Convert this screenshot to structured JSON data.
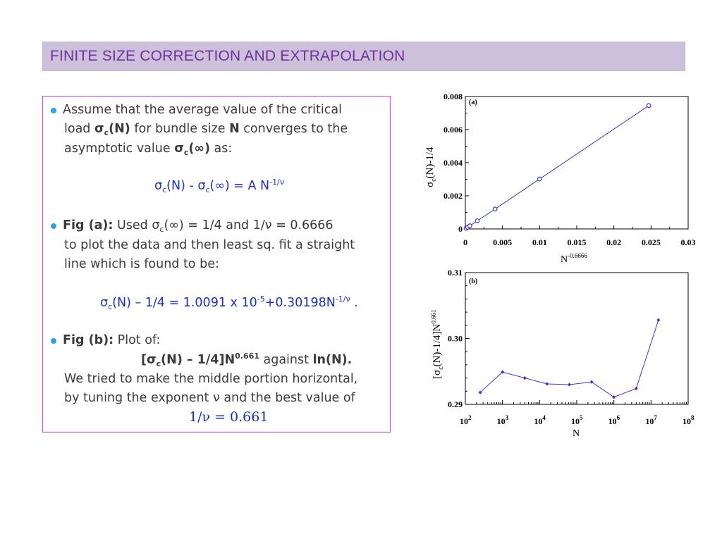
{
  "header": {
    "title": "FINITE  SIZE  CORRECTION  AND  EXTRAPOLATION"
  },
  "body": {
    "p1": {
      "line1": "Assume that the average value of the critical",
      "line2_a": "load ",
      "sigma": "σ",
      "sub_c": "c",
      "line2_b": "(N)",
      "line2_c": " for bundle size ",
      "line2_N": "N",
      "line2_d": " converges to the",
      "line3_a": "asymptotic value ",
      "line3_b": "(∞)",
      "line3_c": " as:"
    },
    "eq1": {
      "sigma": "σ",
      "c": "c",
      "a": "(N) - ",
      "b": "(∞) = A N",
      "exp": "-1/ν"
    },
    "p2": {
      "label": "Fig (a):",
      "a": " Used σ",
      "c": "c",
      "b": "(∞) = 1/4 and 1/ν = 0.6666",
      "line2": "to plot the data and then least sq. fit a straight",
      "line3": "line which is found to be:"
    },
    "eq2": {
      "sigma": "σ",
      "c": "c",
      "a": "(N) – 1/4 = 1.0091 x 10",
      "exp1": "-5",
      "b": "+0.30198N",
      "exp2": "-1/ν",
      "end": " ."
    },
    "p3": {
      "label": "Fig (b):",
      "a": " Plot of:",
      "f_open": "[σ",
      "f_c": "c",
      "f_mid": "(N) – 1/4]N",
      "f_exp": "0.661",
      "f_against": " against ",
      "f_ln": "ln(N).",
      "line3": "We tried to make the middle portion horizontal,",
      "line4": "by tuning the exponent ν and the best value of",
      "value": "1/ν = 0.661"
    }
  },
  "colors": {
    "accent": "#7030a0",
    "title_bg": "#ccc0da",
    "bullet": "#2ea3e0",
    "eq": "#1c2fc0",
    "box_border": "#e33ee3",
    "series": "#3a3ad0"
  },
  "chart_data": [
    {
      "type": "line",
      "panel": "(a)",
      "xlabel": "N",
      "xlabel_exp": "-0.6666",
      "ylabel": "σ",
      "ylabel_sub": "c",
      "ylabel_rest": "(N)-1/4",
      "xlim": [
        0,
        0.03
      ],
      "ylim": [
        0,
        0.008
      ],
      "xticks": [
        0,
        0.005,
        0.01,
        0.015,
        0.02,
        0.025,
        0.03
      ],
      "xtick_labels": [
        "0",
        "0.005",
        "0.01",
        "0.015",
        "0.02",
        "0.025",
        "0.03"
      ],
      "yticks": [
        0,
        0.002,
        0.004,
        0.006,
        0.008
      ],
      "ytick_labels": [
        "0",
        "0.002",
        "0.004",
        "0.006",
        "0.008"
      ],
      "x": [
        0.0001,
        0.0003,
        0.0006,
        0.0016,
        0.004,
        0.01,
        0.0247
      ],
      "y": [
        4e-05,
        0.0001,
        0.00019,
        0.00049,
        0.0012,
        0.00302,
        0.00745
      ],
      "marker": "open-circle"
    },
    {
      "type": "line",
      "panel": "(b)",
      "xlabel": "N",
      "ylabel": "[σ",
      "ylabel_sub": "c",
      "ylabel_rest": "(N)-1/4]N",
      "ylabel_exp": "0.661",
      "xscale": "log",
      "xlim_exp": [
        2,
        8
      ],
      "ylim": [
        0.29,
        0.31
      ],
      "xtick_base": "10",
      "xtick_exps": [
        "2",
        "3",
        "4",
        "5",
        "6",
        "7",
        "8"
      ],
      "yticks": [
        0.29,
        0.3,
        0.31
      ],
      "ytick_labels": [
        "0.29",
        "0.30",
        "0.31"
      ],
      "x_exp": [
        2.4,
        3.0,
        3.6,
        4.2,
        4.8,
        5.4,
        6.0,
        6.6,
        7.2
      ],
      "y": [
        0.2918,
        0.2949,
        0.294,
        0.2931,
        0.293,
        0.2934,
        0.2911,
        0.2924,
        0.3028
      ],
      "marker": "filled-diamond"
    }
  ]
}
